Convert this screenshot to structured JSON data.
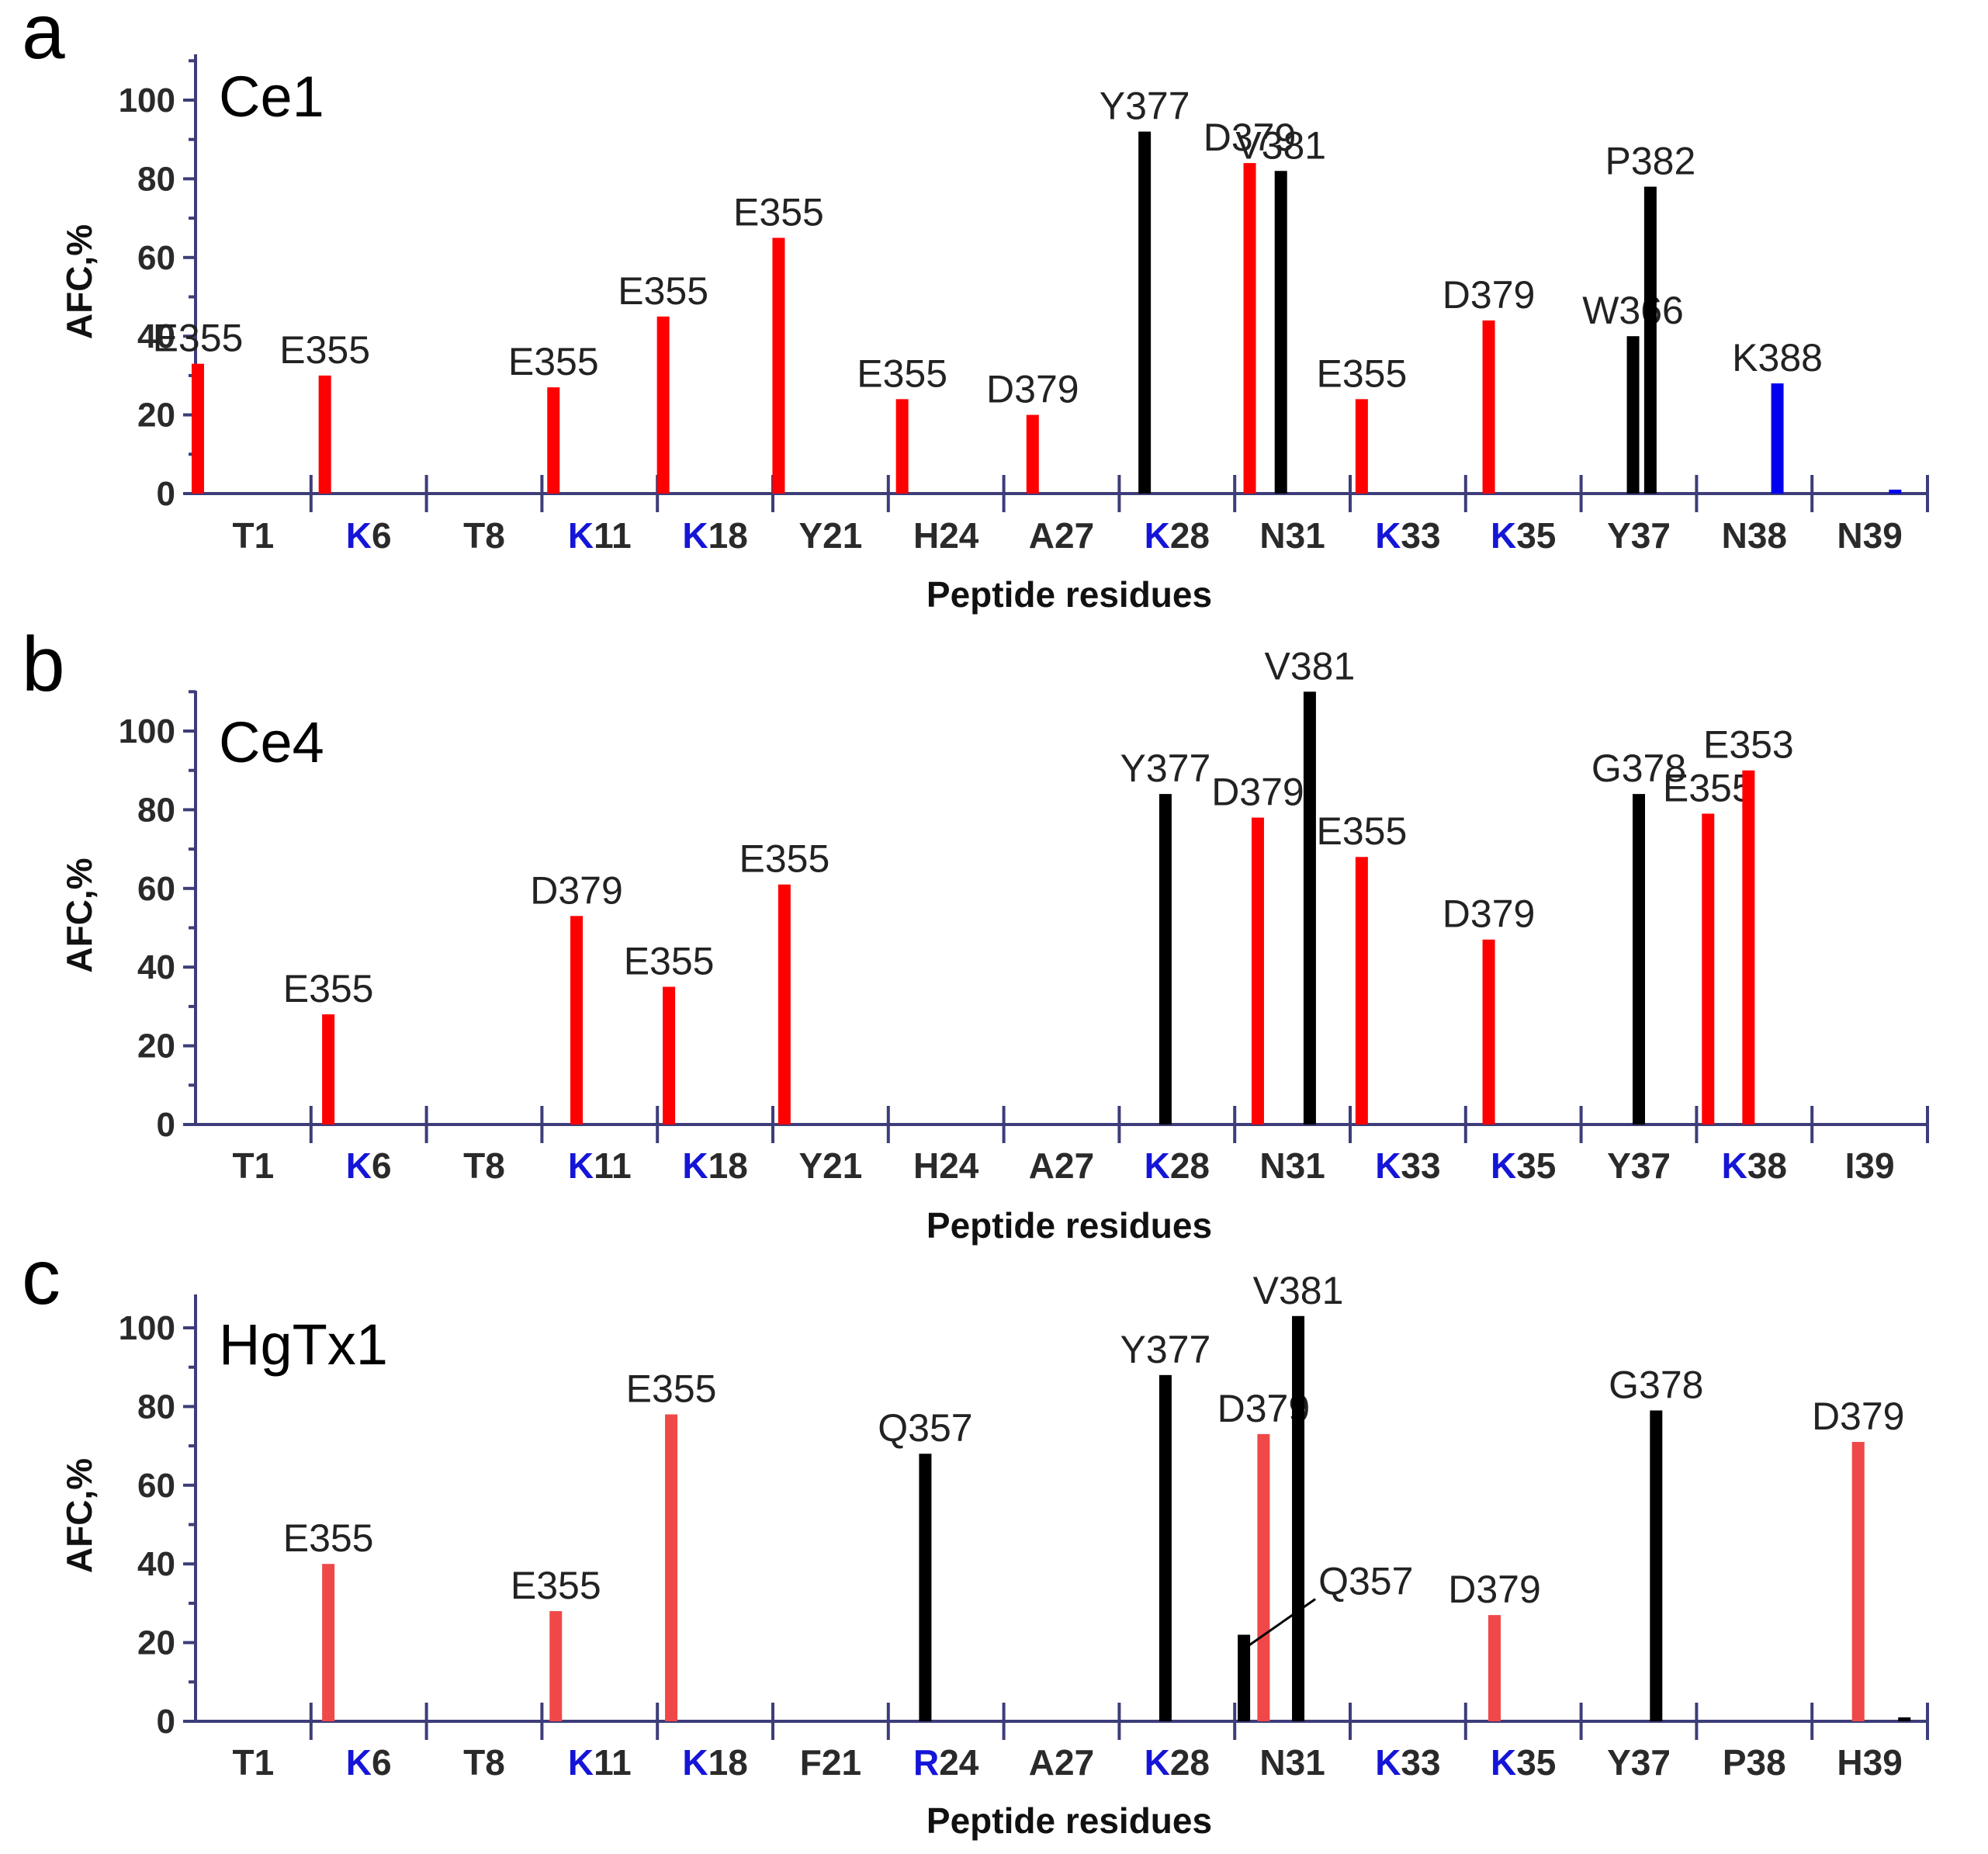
{
  "colors": {
    "red": "#ff0000",
    "salmon": "#f04848",
    "black": "#000000",
    "blue": "#0000ee",
    "axis": "#3d3d7a",
    "highlight_letter": "#1515d8"
  },
  "chart_data": [
    {
      "type": "bar",
      "panel_letter": "a",
      "title": "Ce1",
      "xlabel": "Peptide residues",
      "ylabel": "AFC,%",
      "ylim": [
        0,
        110
      ],
      "yticks": [
        0,
        20,
        40,
        60,
        80,
        100
      ],
      "categories": [
        {
          "label": "T1",
          "hl": ""
        },
        {
          "label": "6",
          "hl": "K"
        },
        {
          "label": "T8",
          "hl": ""
        },
        {
          "label": "11",
          "hl": "K"
        },
        {
          "label": "18",
          "hl": "K"
        },
        {
          "label": "Y21",
          "hl": ""
        },
        {
          "label": "H24",
          "hl": ""
        },
        {
          "label": "A27",
          "hl": ""
        },
        {
          "label": "28",
          "hl": "K"
        },
        {
          "label": "N31",
          "hl": ""
        },
        {
          "label": "33",
          "hl": "K"
        },
        {
          "label": "35",
          "hl": "K"
        },
        {
          "label": "Y37",
          "hl": ""
        },
        {
          "label": "N38",
          "hl": ""
        },
        {
          "label": "N39",
          "hl": ""
        }
      ],
      "bars": [
        {
          "cat": 0,
          "pos": 0.02,
          "value": 33,
          "color": "red",
          "label": "E355"
        },
        {
          "cat": 1,
          "pos": 0.12,
          "value": 30,
          "color": "red",
          "label": "E355"
        },
        {
          "cat": 3,
          "pos": 0.1,
          "value": 27,
          "color": "red",
          "label": "E355"
        },
        {
          "cat": 4,
          "pos": 0.05,
          "value": 45,
          "color": "red",
          "label": "E355"
        },
        {
          "cat": 5,
          "pos": 0.05,
          "value": 65,
          "color": "red",
          "label": "E355"
        },
        {
          "cat": 6,
          "pos": 0.12,
          "value": 24,
          "color": "red",
          "label": "E355"
        },
        {
          "cat": 7,
          "pos": 0.25,
          "value": 20,
          "color": "red",
          "label": "D379"
        },
        {
          "cat": 8,
          "pos": 0.22,
          "value": 92,
          "color": "black",
          "label": "Y377"
        },
        {
          "cat": 9,
          "pos": 0.13,
          "value": 84,
          "color": "red",
          "label": "D379"
        },
        {
          "cat": 9,
          "pos": 0.4,
          "value": 82,
          "color": "black",
          "label": "V381"
        },
        {
          "cat": 10,
          "pos": 0.1,
          "value": 24,
          "color": "red",
          "label": "E355"
        },
        {
          "cat": 11,
          "pos": 0.2,
          "value": 44,
          "color": "red",
          "label": "D379"
        },
        {
          "cat": 12,
          "pos": 0.45,
          "value": 40,
          "color": "black",
          "label": "W366"
        },
        {
          "cat": 12,
          "pos": 0.6,
          "value": 78,
          "color": "black",
          "label": "P382"
        },
        {
          "cat": 13,
          "pos": 0.7,
          "value": 28,
          "color": "blue",
          "label": "K388"
        },
        {
          "cat": 14,
          "pos": 0.72,
          "value": 1,
          "color": "blue",
          "label": ""
        }
      ]
    },
    {
      "type": "bar",
      "panel_letter": "b",
      "title": "Ce4",
      "xlabel": "Peptide residues",
      "ylabel": "AFC,%",
      "ylim": [
        0,
        110
      ],
      "yticks": [
        0,
        20,
        40,
        60,
        80,
        100
      ],
      "categories": [
        {
          "label": "T1",
          "hl": ""
        },
        {
          "label": "6",
          "hl": "K"
        },
        {
          "label": "T8",
          "hl": ""
        },
        {
          "label": "11",
          "hl": "K"
        },
        {
          "label": "18",
          "hl": "K"
        },
        {
          "label": "Y21",
          "hl": ""
        },
        {
          "label": "H24",
          "hl": ""
        },
        {
          "label": "A27",
          "hl": ""
        },
        {
          "label": "28",
          "hl": "K"
        },
        {
          "label": "N31",
          "hl": ""
        },
        {
          "label": "33",
          "hl": "K"
        },
        {
          "label": "35",
          "hl": "K"
        },
        {
          "label": "Y37",
          "hl": ""
        },
        {
          "label": "38",
          "hl": "K"
        },
        {
          "label": "I39",
          "hl": ""
        }
      ],
      "bars": [
        {
          "cat": 1,
          "pos": 0.15,
          "value": 28,
          "color": "red",
          "label": "E355"
        },
        {
          "cat": 3,
          "pos": 0.3,
          "value": 53,
          "color": "red",
          "label": "D379"
        },
        {
          "cat": 4,
          "pos": 0.1,
          "value": 35,
          "color": "red",
          "label": "E355"
        },
        {
          "cat": 5,
          "pos": 0.1,
          "value": 61,
          "color": "red",
          "label": "E355"
        },
        {
          "cat": 8,
          "pos": 0.4,
          "value": 84,
          "color": "black",
          "label": "Y377"
        },
        {
          "cat": 9,
          "pos": 0.2,
          "value": 78,
          "color": "red",
          "label": "D379"
        },
        {
          "cat": 9,
          "pos": 0.65,
          "value": 110,
          "color": "black",
          "label": "V381"
        },
        {
          "cat": 10,
          "pos": 0.1,
          "value": 68,
          "color": "red",
          "label": "E355"
        },
        {
          "cat": 11,
          "pos": 0.2,
          "value": 47,
          "color": "red",
          "label": "D379"
        },
        {
          "cat": 12,
          "pos": 0.5,
          "value": 84,
          "color": "black",
          "label": "G378"
        },
        {
          "cat": 13,
          "pos": 0.1,
          "value": 79,
          "color": "red",
          "label": "E355"
        },
        {
          "cat": 13,
          "pos": 0.45,
          "value": 90,
          "color": "red",
          "label": "E353"
        }
      ]
    },
    {
      "type": "bar",
      "panel_letter": "c",
      "title": "HgTx1",
      "xlabel": "Peptide residues",
      "ylabel": "AFC,%",
      "ylim": [
        0,
        110
      ],
      "yticks": [
        0,
        20,
        40,
        60,
        80,
        100
      ],
      "categories": [
        {
          "label": "T1",
          "hl": ""
        },
        {
          "label": "6",
          "hl": "K"
        },
        {
          "label": "T8",
          "hl": ""
        },
        {
          "label": "11",
          "hl": "K"
        },
        {
          "label": "18",
          "hl": "K"
        },
        {
          "label": "F21",
          "hl": ""
        },
        {
          "label": "24",
          "hl": "R"
        },
        {
          "label": "A27",
          "hl": ""
        },
        {
          "label": "28",
          "hl": "K"
        },
        {
          "label": "N31",
          "hl": ""
        },
        {
          "label": "33",
          "hl": "K"
        },
        {
          "label": "35",
          "hl": "K"
        },
        {
          "label": "Y37",
          "hl": ""
        },
        {
          "label": "P38",
          "hl": ""
        },
        {
          "label": "H39",
          "hl": ""
        }
      ],
      "bars": [
        {
          "cat": 1,
          "pos": 0.15,
          "value": 40,
          "color": "salmon",
          "label": "E355"
        },
        {
          "cat": 3,
          "pos": 0.12,
          "value": 28,
          "color": "salmon",
          "label": "E355"
        },
        {
          "cat": 4,
          "pos": 0.12,
          "value": 78,
          "color": "salmon",
          "label": "E355"
        },
        {
          "cat": 6,
          "pos": 0.32,
          "value": 68,
          "color": "black",
          "label": "Q357"
        },
        {
          "cat": 8,
          "pos": 0.4,
          "value": 88,
          "color": "black",
          "label": "Y377"
        },
        {
          "cat": 9,
          "pos": 0.08,
          "value": 22,
          "color": "black",
          "label": ""
        },
        {
          "cat": 9,
          "pos": 0.25,
          "value": 73,
          "color": "salmon",
          "label": "D379"
        },
        {
          "cat": 9,
          "pos": 0.55,
          "value": 103,
          "color": "black",
          "label": "V381"
        },
        {
          "cat": 11,
          "pos": 0.25,
          "value": 27,
          "color": "salmon",
          "label": "D379"
        },
        {
          "cat": 12,
          "pos": 0.65,
          "value": 79,
          "color": "black",
          "label": "G378"
        },
        {
          "cat": 14,
          "pos": 0.4,
          "value": 71,
          "color": "salmon",
          "label": "D379"
        },
        {
          "cat": 14,
          "pos": 0.8,
          "value": 1,
          "color": "black",
          "label": ""
        }
      ],
      "annotations": [
        {
          "text": "Q357",
          "cat": 9,
          "pos": 0.08,
          "value": 22
        }
      ]
    }
  ]
}
